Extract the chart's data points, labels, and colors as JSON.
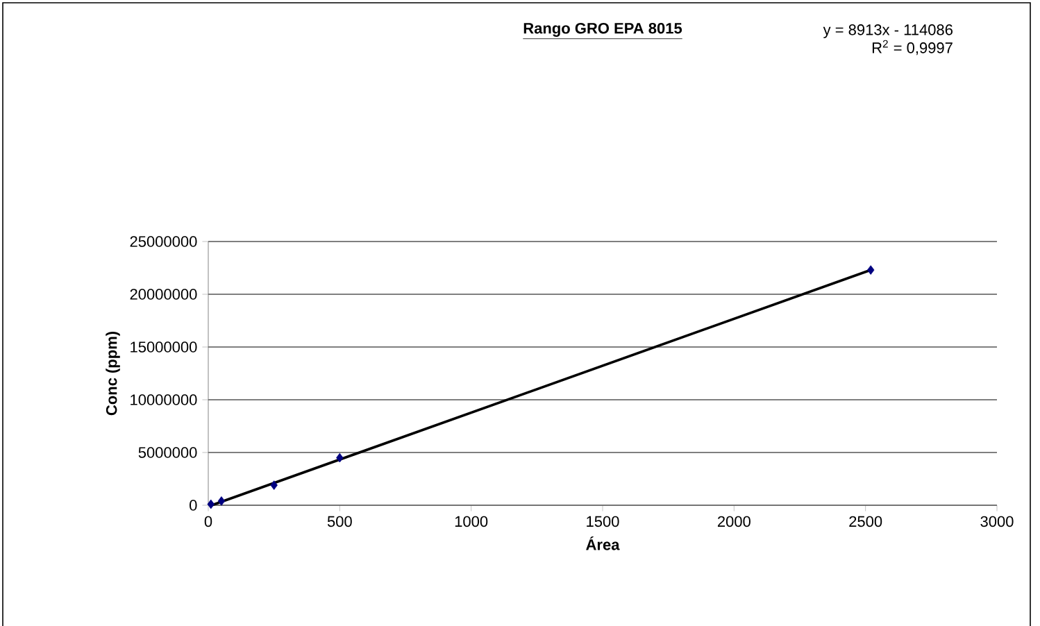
{
  "chart_data": {
    "type": "scatter",
    "title": "Rango GRO EPA 8015",
    "xlabel": "Área",
    "ylabel": "Conc (ppm)",
    "annotations": [
      "y = 8913x - 114086",
      "R$^{2}$ = 0,9997"
    ],
    "series": [
      {
        "color": "#000080",
        "marker": "diamond",
        "x": [
          10,
          50,
          250,
          500,
          2520
        ],
        "values": [
          100000,
          400000,
          1900000,
          4500000,
          22300000
        ]
      },
      {
        "type": "line",
        "color": "#000000",
        "marker": "none",
        "x": [
          13,
          2520
        ],
        "values": [
          0,
          22300000
        ]
      }
    ],
    "xlim": [
      0,
      3000
    ],
    "xticks": [
      0,
      500,
      1000,
      1500,
      2000,
      2500,
      3000
    ],
    "ylim": [
      0,
      25000000
    ],
    "yticks": [
      0,
      5000000,
      10000000,
      15000000,
      20000000,
      25000000
    ],
    "grid": "y"
  }
}
